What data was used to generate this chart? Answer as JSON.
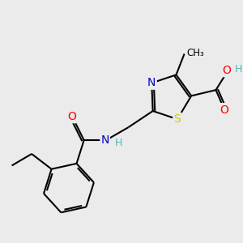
{
  "bg_color": "#ebebeb",
  "atom_colors": {
    "C": "#000000",
    "N": "#0000cc",
    "O": "#ff0000",
    "S": "#cccc00",
    "H": "#4db8b8"
  },
  "bond_color": "#000000",
  "bond_width": 1.5,
  "figsize": [
    3.0,
    3.0
  ],
  "dpi": 100
}
